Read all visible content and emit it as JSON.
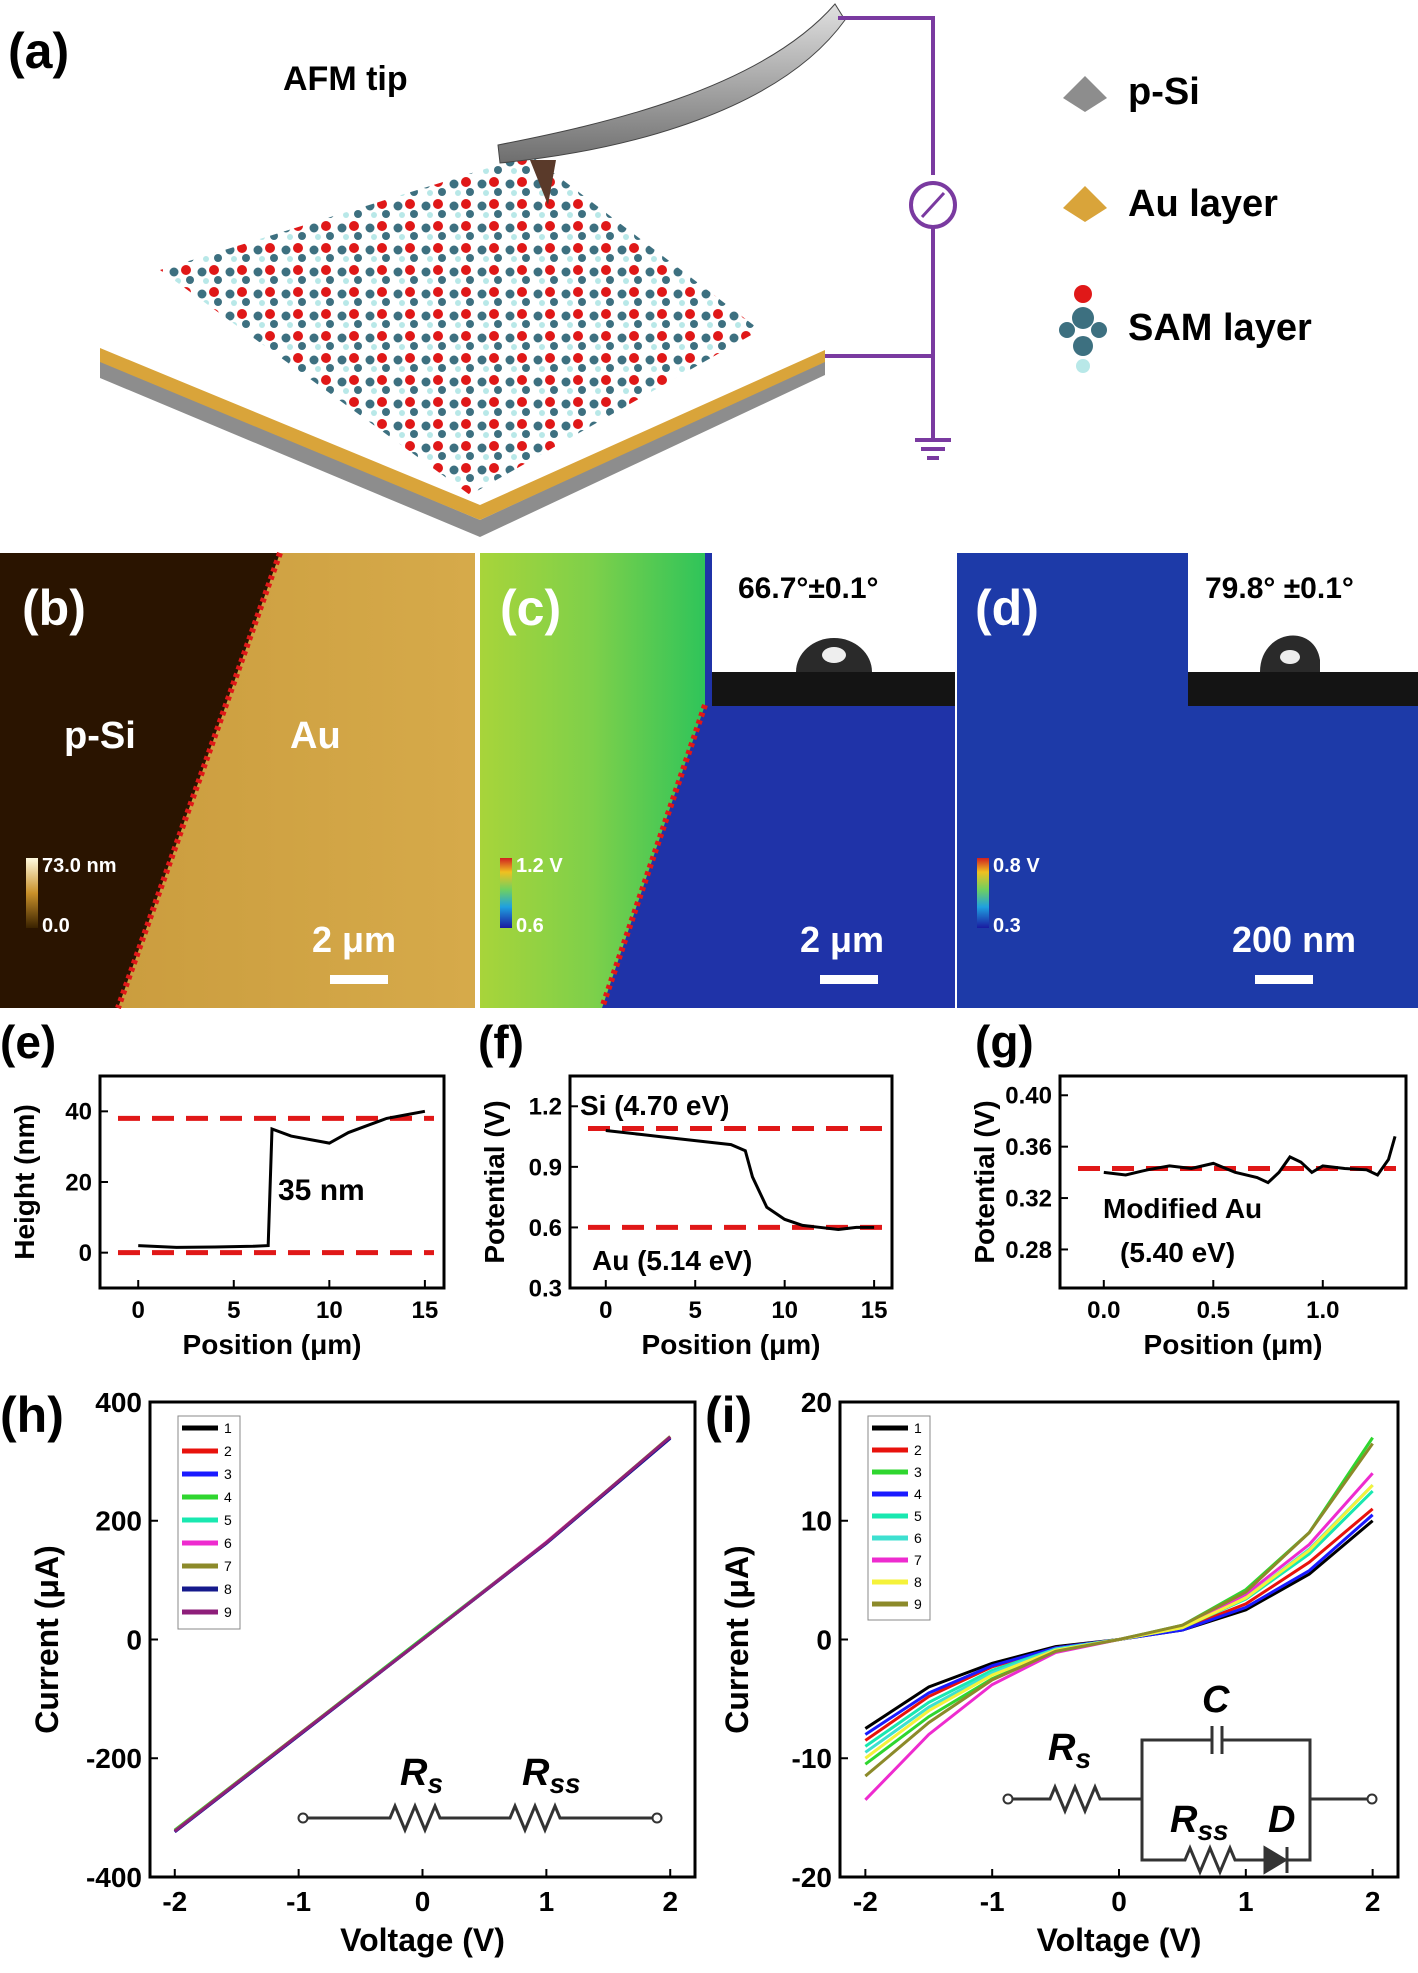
{
  "panel_a": {
    "label": "(a)",
    "tip_label": "AFM tip",
    "legend": [
      {
        "label": "p-Si",
        "color": "#8d8d8d"
      },
      {
        "label": "Au layer",
        "color": "#d9a43a"
      },
      {
        "label": "SAM layer",
        "color": "#3d7080"
      }
    ]
  },
  "panel_b": {
    "label": "(b)",
    "region_left": "p-Si",
    "region_right": "Au",
    "scale_max": "73.0 nm",
    "scale_min": "0.0",
    "scalebar": "2 μm"
  },
  "panel_c": {
    "label": "(c)",
    "contact_angle": "66.7°±0.1°",
    "scale_max": "1.2 V",
    "scale_min": "0.6",
    "scalebar": "2 μm"
  },
  "panel_d": {
    "label": "(d)",
    "contact_angle": "79.8° ±0.1°",
    "scale_max": "0.8 V",
    "scale_min": "0.3",
    "scalebar": "200 nm"
  },
  "chart_data": [
    {
      "id": "e",
      "panel_label": "(e)",
      "type": "line",
      "xlabel": "Position (μm)",
      "ylabel": "Height (nm)",
      "xlim": [
        -2,
        16
      ],
      "ylim": [
        -10,
        50
      ],
      "xticks": [
        "0",
        "5",
        "10",
        "15"
      ],
      "yticks": [
        "0",
        "20",
        "40"
      ],
      "ref_lines_y": [
        0,
        38
      ],
      "annotations": [
        "35 nm"
      ],
      "x": [
        0,
        2,
        4,
        6,
        6.8,
        7,
        8,
        9,
        10,
        11,
        12,
        13,
        14,
        15
      ],
      "y": [
        2,
        1.5,
        1.6,
        1.8,
        2,
        35,
        33,
        32,
        31,
        34,
        36,
        38,
        39,
        40
      ]
    },
    {
      "id": "f",
      "panel_label": "(f)",
      "type": "line",
      "xlabel": "Position (μm)",
      "ylabel": "Potential (V)",
      "xlim": [
        -2,
        16
      ],
      "ylim": [
        0.3,
        1.35
      ],
      "xticks": [
        "0",
        "5",
        "10",
        "15"
      ],
      "yticks": [
        "0.3",
        "0.6",
        "0.9",
        "1.2"
      ],
      "ref_lines_y": [
        1.09,
        0.6
      ],
      "annotations": [
        "Si (4.70 eV)",
        "Au (5.14 eV)"
      ],
      "x": [
        0,
        2,
        4,
        6,
        7,
        7.8,
        8.2,
        9,
        10,
        11,
        12,
        13,
        14,
        15
      ],
      "y": [
        1.08,
        1.06,
        1.04,
        1.02,
        1.01,
        0.98,
        0.85,
        0.7,
        0.64,
        0.61,
        0.6,
        0.59,
        0.6,
        0.6
      ]
    },
    {
      "id": "g",
      "panel_label": "(g)",
      "type": "line",
      "xlabel": "Position (μm)",
      "ylabel": "Potential (V)",
      "xlim": [
        -0.2,
        1.38
      ],
      "ylim": [
        0.25,
        0.415
      ],
      "xticks": [
        "0.0",
        "0.5",
        "1.0"
      ],
      "yticks": [
        "0.28",
        "0.32",
        "0.36",
        "0.40"
      ],
      "ref_lines_y": [
        0.343
      ],
      "annotations": [
        "Modified Au",
        "(5.40 eV)"
      ],
      "x": [
        0,
        0.1,
        0.2,
        0.3,
        0.4,
        0.5,
        0.6,
        0.7,
        0.75,
        0.8,
        0.85,
        0.9,
        0.95,
        1.0,
        1.1,
        1.2,
        1.25,
        1.3,
        1.33
      ],
      "y": [
        0.34,
        0.338,
        0.342,
        0.345,
        0.343,
        0.347,
        0.34,
        0.336,
        0.332,
        0.34,
        0.352,
        0.348,
        0.34,
        0.345,
        0.343,
        0.342,
        0.338,
        0.35,
        0.368
      ]
    },
    {
      "id": "h",
      "panel_label": "(h)",
      "type": "line",
      "xlabel": "Voltage (V)",
      "ylabel": "Current (μA)",
      "xlim": [
        -2.2,
        2.2
      ],
      "ylim": [
        -400,
        400
      ],
      "xticks": [
        "-2",
        "-1",
        "0",
        "1",
        "2"
      ],
      "yticks": [
        "-400",
        "-200",
        "0",
        "200",
        "400"
      ],
      "circuit_labels": [
        "R",
        "s",
        "R",
        "ss"
      ],
      "x": [
        -2,
        -1,
        0,
        1,
        2
      ],
      "series": [
        {
          "name": "1",
          "color": "#000000",
          "values": [
            -323,
            -161,
            0,
            163,
            340
          ]
        },
        {
          "name": "2",
          "color": "#e8120c",
          "values": [
            -322,
            -160,
            0,
            164,
            341
          ]
        },
        {
          "name": "3",
          "color": "#1a1aff",
          "values": [
            -324,
            -162,
            0,
            162,
            339
          ]
        },
        {
          "name": "4",
          "color": "#2fd62f",
          "values": [
            -321,
            -160,
            2,
            163,
            340
          ]
        },
        {
          "name": "5",
          "color": "#19e8b0",
          "values": [
            -322,
            -161,
            0,
            163,
            341
          ]
        },
        {
          "name": "6",
          "color": "#ee2bcf",
          "values": [
            -323,
            -161,
            0,
            164,
            340
          ]
        },
        {
          "name": "7",
          "color": "#8c8a2a",
          "values": [
            -322,
            -160,
            0,
            163,
            342
          ]
        },
        {
          "name": "8",
          "color": "#151a8c",
          "values": [
            -324,
            -162,
            0,
            162,
            339
          ]
        },
        {
          "name": "9",
          "color": "#8e1f7a",
          "values": [
            -323,
            -161,
            0,
            163,
            341
          ]
        }
      ]
    },
    {
      "id": "i",
      "panel_label": "(i)",
      "type": "line",
      "xlabel": "Voltage (V)",
      "ylabel": "Current (μA)",
      "xlim": [
        -2.2,
        2.2
      ],
      "ylim": [
        -20,
        20
      ],
      "xticks": [
        "-2",
        "-1",
        "0",
        "1",
        "2"
      ],
      "yticks": [
        "-20",
        "-10",
        "0",
        "10",
        "20"
      ],
      "circuit_labels": [
        "R",
        "s",
        "C",
        "R",
        "ss",
        "D"
      ],
      "x": [
        -2,
        -1.5,
        -1,
        -0.5,
        0,
        0.5,
        1,
        1.5,
        2
      ],
      "series": [
        {
          "name": "1",
          "color": "#000000",
          "values": [
            -7.5,
            -4,
            -2,
            -0.6,
            0,
            0.8,
            2.5,
            5.5,
            10
          ]
        },
        {
          "name": "2",
          "color": "#e8120c",
          "values": [
            -8.5,
            -4.8,
            -2.3,
            -0.7,
            0,
            0.9,
            3,
            6.5,
            11
          ]
        },
        {
          "name": "3",
          "color": "#2fd62f",
          "values": [
            -10.5,
            -6.5,
            -3.3,
            -1,
            0,
            1.2,
            4.2,
            9,
            17
          ]
        },
        {
          "name": "4",
          "color": "#1a1aff",
          "values": [
            -8,
            -4.5,
            -2.2,
            -0.7,
            0,
            0.8,
            2.7,
            5.8,
            10.5
          ]
        },
        {
          "name": "5",
          "color": "#19e8b0",
          "values": [
            -9,
            -5.3,
            -2.6,
            -0.8,
            0,
            1,
            3.4,
            7.2,
            12.5
          ]
        },
        {
          "name": "6",
          "color": "#3ee0d0",
          "values": [
            -9.5,
            -5.7,
            -2.8,
            -0.8,
            0,
            1,
            3.5,
            7.6,
            13
          ]
        },
        {
          "name": "7",
          "color": "#ee2bcf",
          "values": [
            -13.5,
            -8,
            -3.8,
            -1.1,
            0,
            1.1,
            3.8,
            8,
            14
          ]
        },
        {
          "name": "8",
          "color": "#f5f23a",
          "values": [
            -10,
            -6,
            -3,
            -0.9,
            0,
            1,
            3.5,
            7.5,
            13
          ]
        },
        {
          "name": "9",
          "color": "#8c8a2a",
          "values": [
            -11.5,
            -7,
            -3.4,
            -1,
            0,
            1.2,
            4,
            9,
            16.5
          ]
        }
      ]
    }
  ]
}
